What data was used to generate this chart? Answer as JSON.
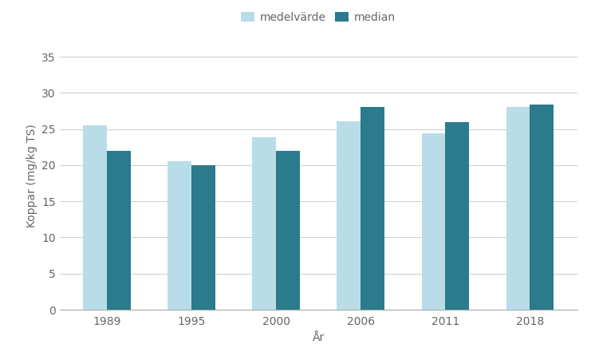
{
  "years": [
    "1989",
    "1995",
    "2000",
    "2006",
    "2011",
    "2018"
  ],
  "medelvarde": [
    25.5,
    20.5,
    23.8,
    26.1,
    24.4,
    28.1
  ],
  "median": [
    22.0,
    20.0,
    22.0,
    28.1,
    26.0,
    28.4
  ],
  "color_medelvarde": "#b8dde8",
  "color_median": "#2a7b8c",
  "xlabel": "År",
  "ylabel": "Koppar (mg/kg TS)",
  "legend_medelvarde": "medelvärde",
  "legend_median": "median",
  "ylim": [
    0,
    37
  ],
  "yticks": [
    0,
    5,
    10,
    15,
    20,
    25,
    30,
    35
  ],
  "bar_width": 0.28,
  "grid_color": "#d0d0d0",
  "background_color": "#ffffff",
  "label_fontsize": 10,
  "tick_fontsize": 10,
  "legend_fontsize": 10,
  "axis_color": "#aaaaaa",
  "text_color": "#666666"
}
